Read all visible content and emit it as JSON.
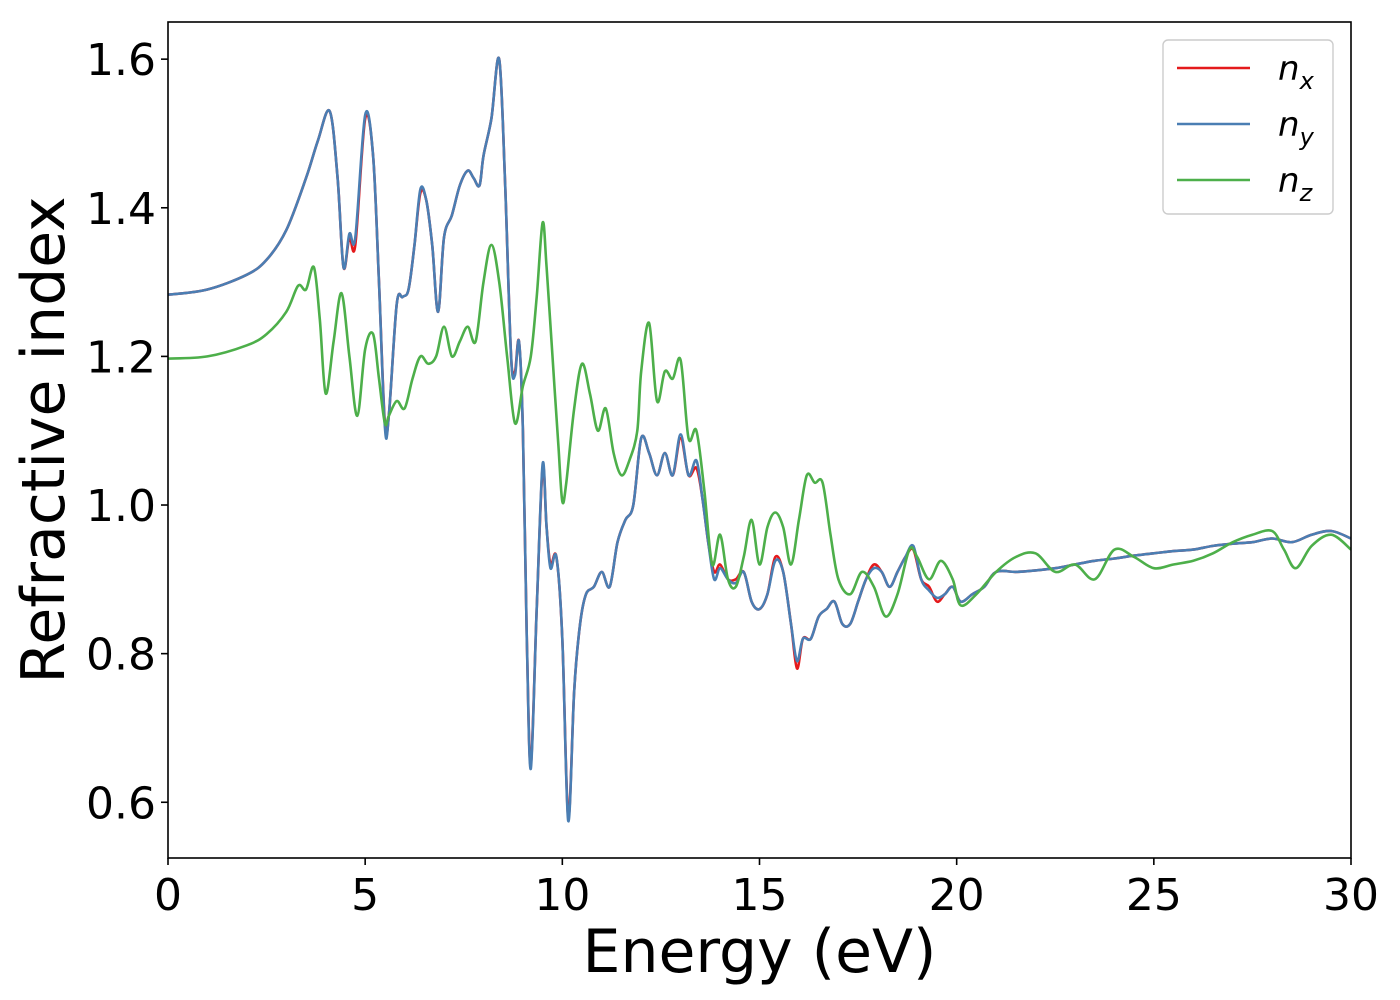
{
  "chart_data": {
    "type": "line",
    "xlabel": "Energy (eV)",
    "ylabel": "Refractive index",
    "xlim": [
      0,
      30
    ],
    "ylim": [
      0.525,
      1.65
    ],
    "xticks": [
      0,
      5,
      10,
      15,
      20,
      25,
      30
    ],
    "xtick_labels": [
      "0",
      "5",
      "10",
      "15",
      "20",
      "25",
      "30"
    ],
    "yticks": [
      0.6,
      0.8,
      1.0,
      1.2,
      1.4,
      1.6
    ],
    "ytick_labels": [
      "0.6",
      "0.8",
      "1.0",
      "1.2",
      "1.4",
      "1.6"
    ],
    "grid": false,
    "legend_position": "top-right",
    "series": [
      {
        "name": "n_x",
        "label_base": "n",
        "label_sub": "x",
        "color": "#e41a1c",
        "x": [
          0,
          1,
          2,
          2.5,
          3,
          3.5,
          3.8,
          4.1,
          4.3,
          4.45,
          4.6,
          4.75,
          5.0,
          5.2,
          5.35,
          5.5,
          5.6,
          5.8,
          5.95,
          6.1,
          6.25,
          6.4,
          6.55,
          6.7,
          6.85,
          7.0,
          7.2,
          7.4,
          7.6,
          7.75,
          7.9,
          8.0,
          8.2,
          8.4,
          8.55,
          8.7,
          8.8,
          8.9,
          9.0,
          9.1,
          9.2,
          9.35,
          9.5,
          9.6,
          9.7,
          9.85,
          10.0,
          10.15,
          10.3,
          10.45,
          10.6,
          10.8,
          11.0,
          11.2,
          11.4,
          11.6,
          11.8,
          12.0,
          12.2,
          12.4,
          12.6,
          12.8,
          13.0,
          13.2,
          13.4,
          13.55,
          13.7,
          13.85,
          14.0,
          14.2,
          14.4,
          14.6,
          14.8,
          15.0,
          15.2,
          15.4,
          15.6,
          15.8,
          15.95,
          16.1,
          16.3,
          16.5,
          16.7,
          16.9,
          17.1,
          17.3,
          17.5,
          17.7,
          17.9,
          18.1,
          18.3,
          18.5,
          18.7,
          18.9,
          19.1,
          19.3,
          19.5,
          19.7,
          19.9,
          20.1,
          20.4,
          20.7,
          21.0,
          21.5,
          22.0,
          22.5,
          23.0,
          23.5,
          24.0,
          24.5,
          25.0,
          25.5,
          26.0,
          26.5,
          27.0,
          27.5,
          28.0,
          28.5,
          29.0,
          29.5,
          30.0
        ],
        "y": [
          1.283,
          1.29,
          1.31,
          1.33,
          1.37,
          1.44,
          1.49,
          1.53,
          1.44,
          1.32,
          1.36,
          1.35,
          1.52,
          1.47,
          1.3,
          1.11,
          1.12,
          1.27,
          1.28,
          1.29,
          1.35,
          1.42,
          1.41,
          1.35,
          1.26,
          1.36,
          1.39,
          1.43,
          1.45,
          1.44,
          1.43,
          1.47,
          1.52,
          1.6,
          1.43,
          1.2,
          1.18,
          1.22,
          1.1,
          0.82,
          0.65,
          0.86,
          1.05,
          0.97,
          0.92,
          0.93,
          0.82,
          0.58,
          0.75,
          0.84,
          0.88,
          0.89,
          0.91,
          0.89,
          0.95,
          0.98,
          1.0,
          1.09,
          1.07,
          1.04,
          1.07,
          1.04,
          1.09,
          1.04,
          1.05,
          1.01,
          0.95,
          0.91,
          0.92,
          0.9,
          0.9,
          0.91,
          0.87,
          0.86,
          0.88,
          0.93,
          0.91,
          0.84,
          0.78,
          0.82,
          0.82,
          0.85,
          0.86,
          0.87,
          0.84,
          0.84,
          0.87,
          0.9,
          0.92,
          0.91,
          0.89,
          0.91,
          0.93,
          0.94,
          0.9,
          0.89,
          0.87,
          0.88,
          0.89,
          0.87,
          0.88,
          0.89,
          0.91,
          0.91,
          0.912,
          0.915,
          0.92,
          0.925,
          0.928,
          0.932,
          0.935,
          0.938,
          0.94,
          0.945,
          0.948,
          0.95,
          0.955,
          0.95,
          0.96,
          0.965,
          0.955
        ]
      },
      {
        "name": "n_y",
        "label_base": "n",
        "label_sub": "y",
        "color": "#4a7eb3",
        "x": [
          0,
          1,
          2,
          2.5,
          3,
          3.5,
          3.8,
          4.1,
          4.3,
          4.45,
          4.6,
          4.75,
          5.0,
          5.2,
          5.35,
          5.5,
          5.6,
          5.8,
          5.95,
          6.1,
          6.25,
          6.4,
          6.55,
          6.7,
          6.85,
          7.0,
          7.2,
          7.4,
          7.6,
          7.75,
          7.9,
          8.0,
          8.2,
          8.4,
          8.55,
          8.7,
          8.8,
          8.9,
          9.0,
          9.1,
          9.2,
          9.35,
          9.5,
          9.6,
          9.7,
          9.85,
          10.0,
          10.15,
          10.3,
          10.45,
          10.6,
          10.8,
          11.0,
          11.2,
          11.4,
          11.6,
          11.8,
          12.0,
          12.2,
          12.4,
          12.6,
          12.8,
          13.0,
          13.2,
          13.4,
          13.55,
          13.7,
          13.85,
          14.0,
          14.2,
          14.4,
          14.6,
          14.8,
          15.0,
          15.2,
          15.4,
          15.6,
          15.8,
          15.95,
          16.1,
          16.3,
          16.5,
          16.7,
          16.9,
          17.1,
          17.3,
          17.5,
          17.7,
          17.9,
          18.1,
          18.3,
          18.5,
          18.7,
          18.9,
          19.1,
          19.3,
          19.5,
          19.7,
          19.9,
          20.1,
          20.4,
          20.7,
          21.0,
          21.5,
          22.0,
          22.5,
          23.0,
          23.5,
          24.0,
          24.5,
          25.0,
          25.5,
          26.0,
          26.5,
          27.0,
          27.5,
          28.0,
          28.5,
          29.0,
          29.5,
          30.0
        ],
        "y": [
          1.283,
          1.29,
          1.31,
          1.33,
          1.37,
          1.44,
          1.49,
          1.53,
          1.44,
          1.32,
          1.365,
          1.36,
          1.525,
          1.47,
          1.3,
          1.105,
          1.12,
          1.27,
          1.28,
          1.29,
          1.35,
          1.425,
          1.41,
          1.35,
          1.26,
          1.36,
          1.39,
          1.43,
          1.45,
          1.44,
          1.43,
          1.47,
          1.52,
          1.6,
          1.43,
          1.2,
          1.175,
          1.22,
          1.1,
          0.82,
          0.645,
          0.86,
          1.055,
          0.97,
          0.915,
          0.93,
          0.82,
          0.575,
          0.75,
          0.84,
          0.88,
          0.89,
          0.91,
          0.89,
          0.95,
          0.98,
          1.0,
          1.09,
          1.07,
          1.04,
          1.07,
          1.04,
          1.095,
          1.04,
          1.06,
          1.01,
          0.95,
          0.9,
          0.915,
          0.9,
          0.895,
          0.91,
          0.87,
          0.86,
          0.88,
          0.925,
          0.91,
          0.84,
          0.79,
          0.82,
          0.82,
          0.85,
          0.86,
          0.87,
          0.84,
          0.84,
          0.87,
          0.9,
          0.915,
          0.91,
          0.89,
          0.91,
          0.93,
          0.945,
          0.9,
          0.885,
          0.875,
          0.88,
          0.89,
          0.87,
          0.88,
          0.89,
          0.91,
          0.91,
          0.912,
          0.915,
          0.92,
          0.925,
          0.928,
          0.932,
          0.935,
          0.938,
          0.94,
          0.945,
          0.948,
          0.95,
          0.955,
          0.95,
          0.96,
          0.965,
          0.955
        ]
      },
      {
        "name": "n_z",
        "label_base": "n",
        "label_sub": "z",
        "color": "#4daf4a",
        "x": [
          0,
          1,
          2,
          2.5,
          3,
          3.3,
          3.5,
          3.7,
          3.85,
          4.0,
          4.2,
          4.4,
          4.6,
          4.8,
          5.0,
          5.2,
          5.35,
          5.5,
          5.6,
          5.8,
          6.0,
          6.2,
          6.4,
          6.6,
          6.8,
          7.0,
          7.2,
          7.4,
          7.6,
          7.8,
          8.0,
          8.2,
          8.4,
          8.6,
          8.8,
          9.0,
          9.2,
          9.35,
          9.5,
          9.6,
          9.75,
          9.9,
          10.0,
          10.1,
          10.3,
          10.5,
          10.7,
          10.9,
          11.1,
          11.3,
          11.5,
          11.7,
          11.9,
          12.0,
          12.2,
          12.4,
          12.6,
          12.8,
          13.0,
          13.2,
          13.4,
          13.6,
          13.8,
          14.0,
          14.2,
          14.4,
          14.6,
          14.8,
          15.0,
          15.2,
          15.4,
          15.6,
          15.8,
          16.0,
          16.2,
          16.4,
          16.6,
          16.8,
          17.0,
          17.3,
          17.6,
          17.9,
          18.2,
          18.5,
          18.8,
          19.0,
          19.3,
          19.6,
          19.9,
          20.1,
          20.5,
          21.0,
          21.5,
          22.0,
          22.5,
          23.0,
          23.5,
          24.0,
          24.5,
          25.0,
          25.5,
          26.0,
          26.5,
          27.0,
          27.5,
          28.0,
          28.3,
          28.6,
          29.0,
          29.5,
          30.0
        ],
        "y": [
          1.197,
          1.2,
          1.215,
          1.23,
          1.26,
          1.295,
          1.29,
          1.32,
          1.25,
          1.15,
          1.22,
          1.285,
          1.2,
          1.12,
          1.21,
          1.23,
          1.17,
          1.11,
          1.12,
          1.14,
          1.13,
          1.17,
          1.2,
          1.19,
          1.2,
          1.24,
          1.2,
          1.22,
          1.24,
          1.22,
          1.3,
          1.35,
          1.3,
          1.2,
          1.11,
          1.16,
          1.2,
          1.28,
          1.38,
          1.32,
          1.2,
          1.08,
          1.005,
          1.03,
          1.13,
          1.19,
          1.15,
          1.1,
          1.13,
          1.07,
          1.04,
          1.06,
          1.1,
          1.18,
          1.245,
          1.14,
          1.18,
          1.17,
          1.195,
          1.09,
          1.1,
          1.02,
          0.92,
          0.96,
          0.9,
          0.89,
          0.93,
          0.98,
          0.92,
          0.97,
          0.99,
          0.97,
          0.92,
          0.98,
          1.04,
          1.03,
          1.03,
          0.96,
          0.9,
          0.88,
          0.91,
          0.89,
          0.85,
          0.88,
          0.94,
          0.93,
          0.9,
          0.925,
          0.9,
          0.865,
          0.88,
          0.91,
          0.93,
          0.935,
          0.91,
          0.92,
          0.9,
          0.94,
          0.93,
          0.915,
          0.92,
          0.925,
          0.935,
          0.95,
          0.96,
          0.965,
          0.94,
          0.915,
          0.945,
          0.96,
          0.94
        ]
      }
    ]
  }
}
